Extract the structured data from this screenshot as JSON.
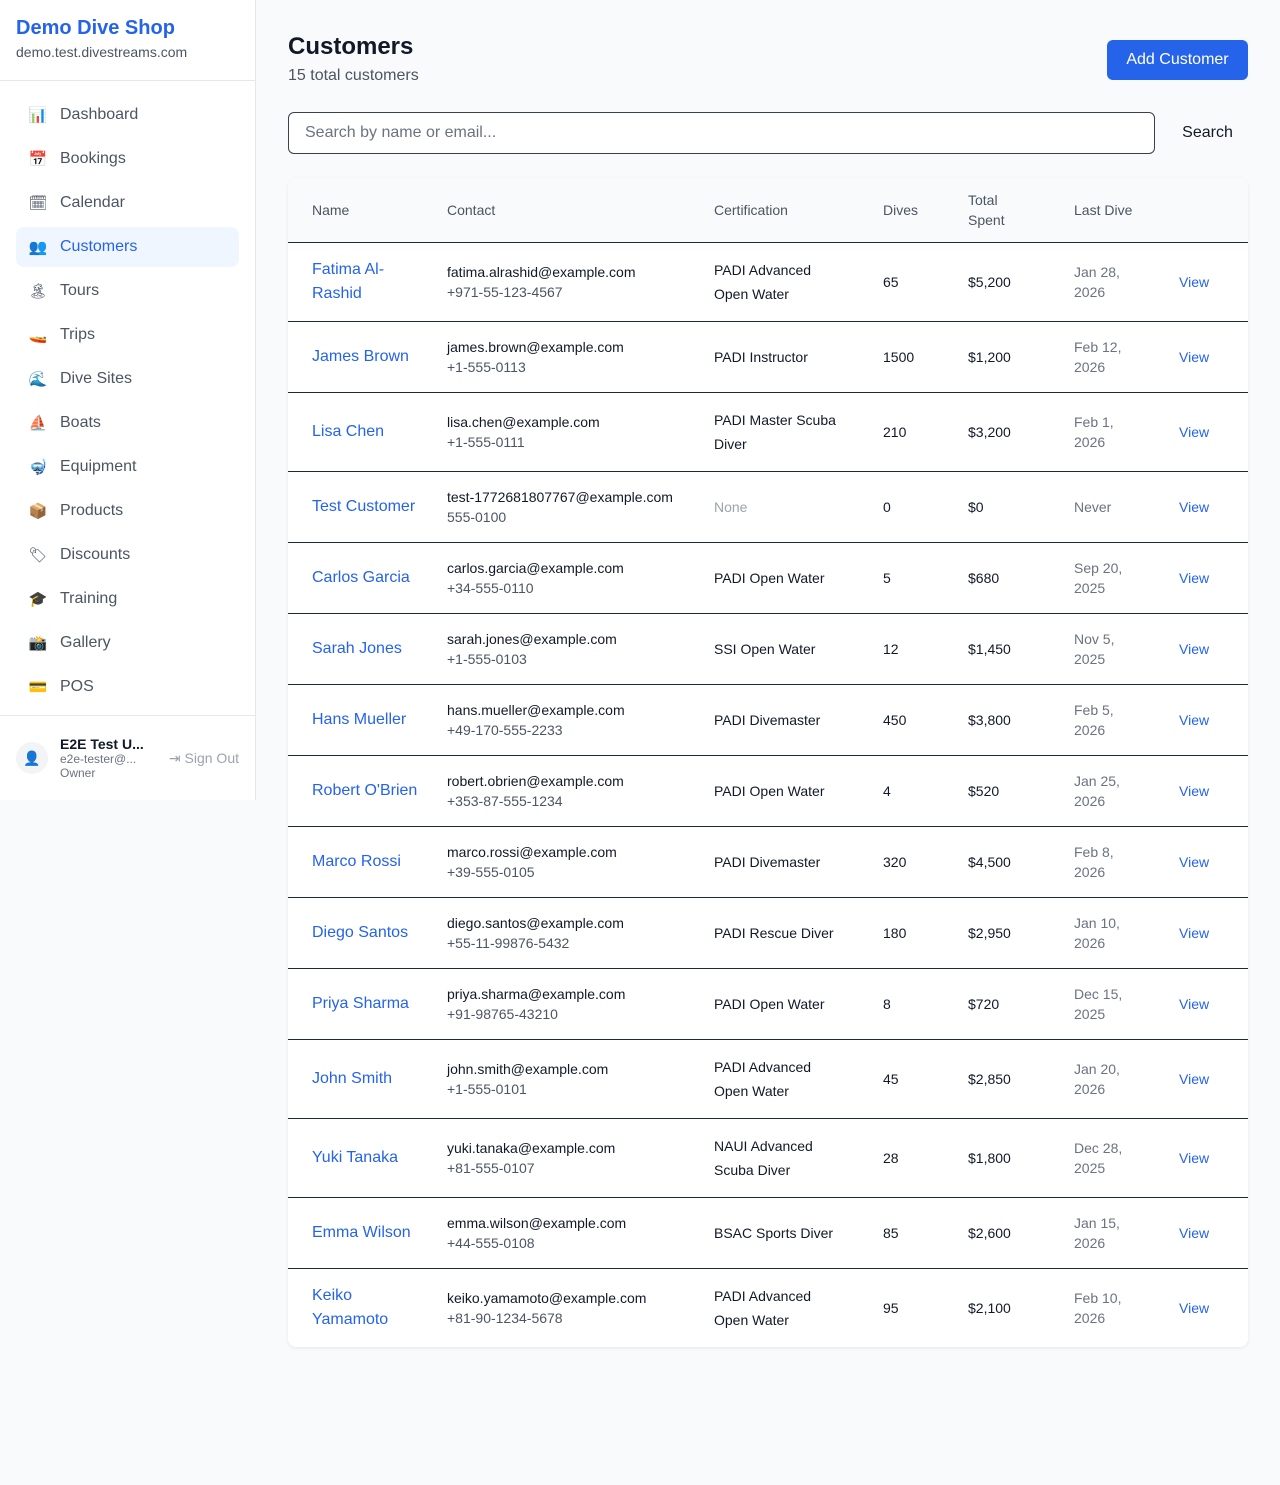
{
  "brand": {
    "name": "Demo Dive Shop",
    "domain": "demo.test.divestreams.com"
  },
  "nav": [
    {
      "label": "Dashboard",
      "icon": "📊",
      "active": false
    },
    {
      "label": "Bookings",
      "icon": "📅",
      "active": false
    },
    {
      "label": "Calendar",
      "icon": "🗓",
      "active": false
    },
    {
      "label": "Customers",
      "icon": "👥",
      "active": true
    },
    {
      "label": "Tours",
      "icon": "🏝",
      "active": false
    },
    {
      "label": "Trips",
      "icon": "🚤",
      "active": false
    },
    {
      "label": "Dive Sites",
      "icon": "🌊",
      "active": false
    },
    {
      "label": "Boats",
      "icon": "⛵",
      "active": false
    },
    {
      "label": "Equipment",
      "icon": "🤿",
      "active": false
    },
    {
      "label": "Products",
      "icon": "📦",
      "active": false
    },
    {
      "label": "Discounts",
      "icon": "🏷",
      "active": false
    },
    {
      "label": "Training",
      "icon": "🎓",
      "active": false
    },
    {
      "label": "Gallery",
      "icon": "📸",
      "active": false
    },
    {
      "label": "POS",
      "icon": "💳",
      "active": false
    }
  ],
  "user": {
    "name": "E2E Test U...",
    "email": "e2e-tester@...",
    "role": "Owner",
    "sign_out": "Sign Out"
  },
  "page": {
    "title": "Customers",
    "subtitle": "15 total customers",
    "add_label": "Add Customer",
    "search_placeholder": "Search by name or email...",
    "search_label": "Search"
  },
  "table": {
    "headers": [
      "Name",
      "Contact",
      "Certification",
      "Dives",
      "Total Spent",
      "Last Dive",
      ""
    ],
    "view_label": "View",
    "rows": [
      {
        "name": "Fatima Al-Rashid",
        "email": "fatima.alrashid@example.com",
        "phone": "+971-55-123-4567",
        "cert": "PADI Advanced Open Water",
        "dives": "65",
        "spent": "$5,200",
        "last": "Jan 28, 2026"
      },
      {
        "name": "James Brown",
        "email": "james.brown@example.com",
        "phone": "+1-555-0113",
        "cert": "PADI Instructor",
        "dives": "1500",
        "spent": "$1,200",
        "last": "Feb 12, 2026"
      },
      {
        "name": "Lisa Chen",
        "email": "lisa.chen@example.com",
        "phone": "+1-555-0111",
        "cert": "PADI Master Scuba Diver",
        "dives": "210",
        "spent": "$3,200",
        "last": "Feb 1, 2026"
      },
      {
        "name": "Test Customer",
        "email": "test-1772681807767@example.com",
        "phone": "555-0100",
        "cert": "None",
        "dives": "0",
        "spent": "$0",
        "last": "Never"
      },
      {
        "name": "Carlos Garcia",
        "email": "carlos.garcia@example.com",
        "phone": "+34-555-0110",
        "cert": "PADI Open Water",
        "dives": "5",
        "spent": "$680",
        "last": "Sep 20, 2025"
      },
      {
        "name": "Sarah Jones",
        "email": "sarah.jones@example.com",
        "phone": "+1-555-0103",
        "cert": "SSI Open Water",
        "dives": "12",
        "spent": "$1,450",
        "last": "Nov 5, 2025"
      },
      {
        "name": "Hans Mueller",
        "email": "hans.mueller@example.com",
        "phone": "+49-170-555-2233",
        "cert": "PADI Divemaster",
        "dives": "450",
        "spent": "$3,800",
        "last": "Feb 5, 2026"
      },
      {
        "name": "Robert O'Brien",
        "email": "robert.obrien@example.com",
        "phone": "+353-87-555-1234",
        "cert": "PADI Open Water",
        "dives": "4",
        "spent": "$520",
        "last": "Jan 25, 2026"
      },
      {
        "name": "Marco Rossi",
        "email": "marco.rossi@example.com",
        "phone": "+39-555-0105",
        "cert": "PADI Divemaster",
        "dives": "320",
        "spent": "$4,500",
        "last": "Feb 8, 2026"
      },
      {
        "name": "Diego Santos",
        "email": "diego.santos@example.com",
        "phone": "+55-11-99876-5432",
        "cert": "PADI Rescue Diver",
        "dives": "180",
        "spent": "$2,950",
        "last": "Jan 10, 2026"
      },
      {
        "name": "Priya Sharma",
        "email": "priya.sharma@example.com",
        "phone": "+91-98765-43210",
        "cert": "PADI Open Water",
        "dives": "8",
        "spent": "$720",
        "last": "Dec 15, 2025"
      },
      {
        "name": "John Smith",
        "email": "john.smith@example.com",
        "phone": "+1-555-0101",
        "cert": "PADI Advanced Open Water",
        "dives": "45",
        "spent": "$2,850",
        "last": "Jan 20, 2026"
      },
      {
        "name": "Yuki Tanaka",
        "email": "yuki.tanaka@example.com",
        "phone": "+81-555-0107",
        "cert": "NAUI Advanced Scuba Diver",
        "dives": "28",
        "spent": "$1,800",
        "last": "Dec 28, 2025"
      },
      {
        "name": "Emma Wilson",
        "email": "emma.wilson@example.com",
        "phone": "+44-555-0108",
        "cert": "BSAC Sports Diver",
        "dives": "85",
        "spent": "$2,600",
        "last": "Jan 15, 2026"
      },
      {
        "name": "Keiko Yamamoto",
        "email": "keiko.yamamoto@example.com",
        "phone": "+81-90-1234-5678",
        "cert": "PADI Advanced Open Water",
        "dives": "95",
        "spent": "$2,100",
        "last": "Feb 10, 2026"
      }
    ]
  }
}
